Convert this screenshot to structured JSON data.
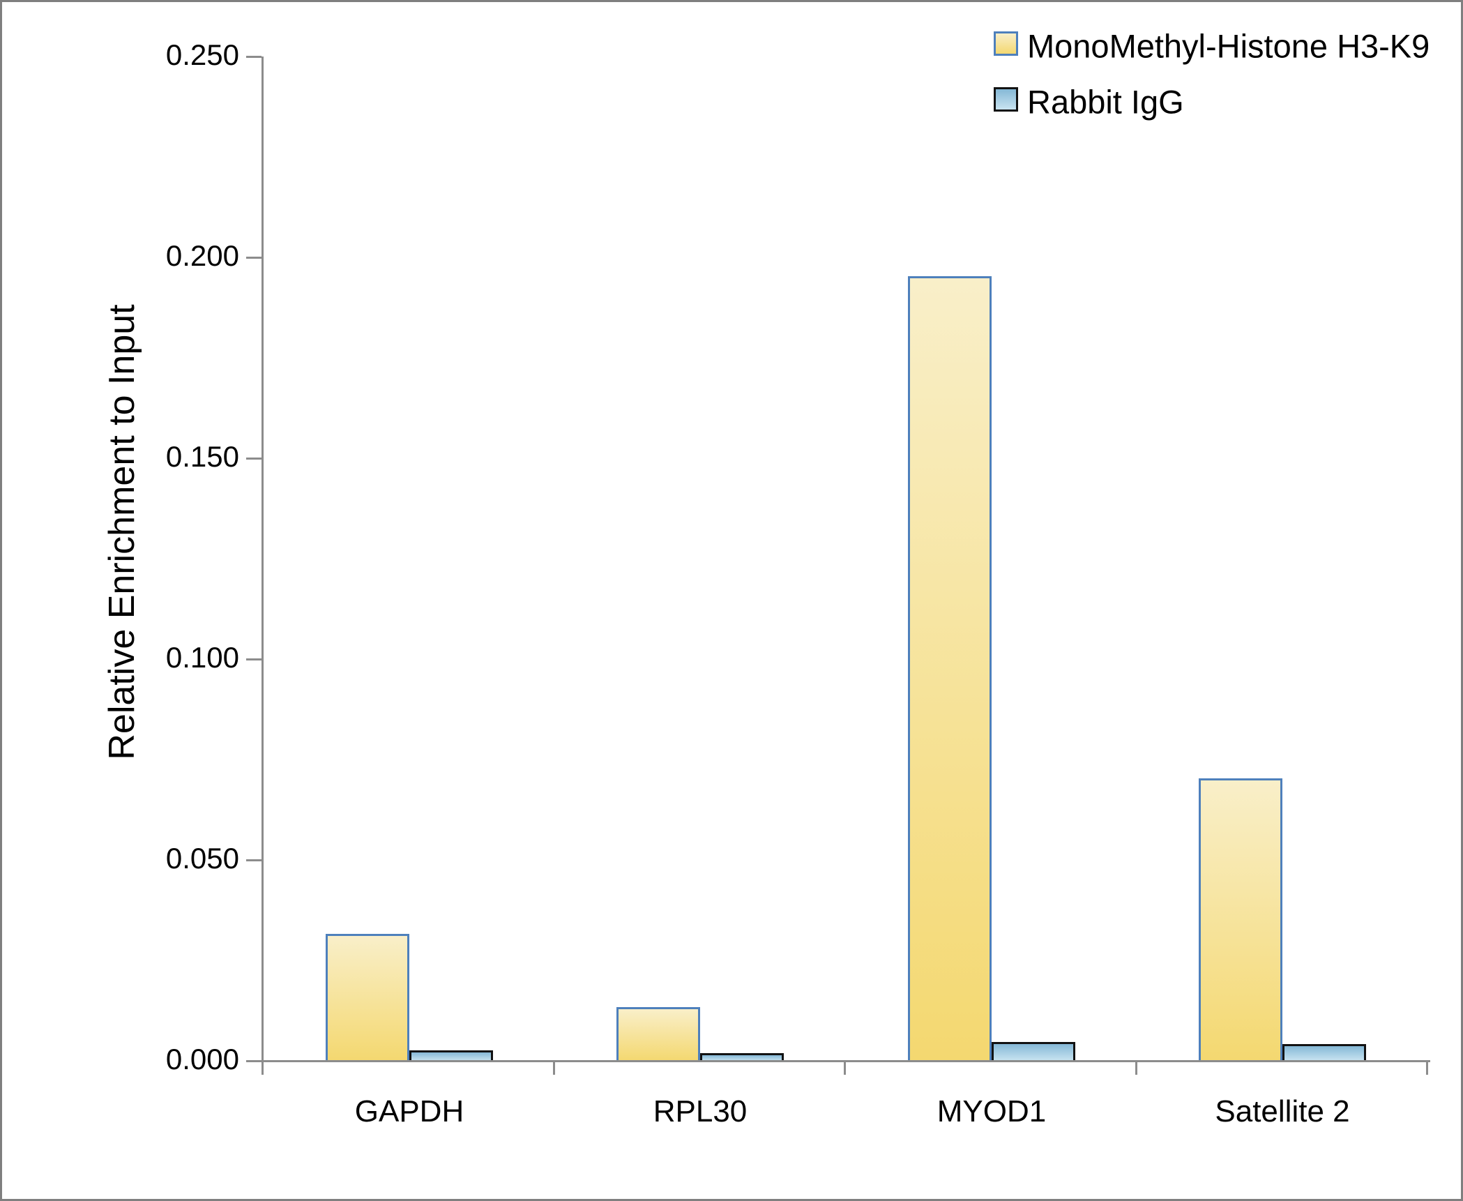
{
  "chart_data": {
    "type": "bar",
    "title": "",
    "xlabel": "",
    "ylabel": "Relative Enrichment to Input",
    "categories": [
      "GAPDH",
      "RPL30",
      "MYOD1",
      "Satellite 2"
    ],
    "series": [
      {
        "name": "MonoMethyl-Histone H3-K9",
        "values": [
          0.0316,
          0.0134,
          0.1953,
          0.0703
        ],
        "fill_top": "#F9EFC9",
        "fill_bottom": "#F4D870",
        "border_color": "#4E80BC"
      },
      {
        "name": "Rabbit IgG",
        "values": [
          0.0026,
          0.0019,
          0.0047,
          0.0042
        ],
        "fill_top": "#85B8D6",
        "fill_bottom": "#C9E4F1",
        "border_color": "#121212"
      }
    ],
    "ylim": [
      0,
      0.25
    ],
    "ytick_step": 0.05,
    "ytick_labels": [
      "0.000",
      "0.050",
      "0.100",
      "0.150",
      "0.200",
      "0.250"
    ],
    "grid": false,
    "legend_position": "top-right"
  },
  "colors": {
    "background": "#FFFFFF",
    "axis": "#8C8C8C",
    "frame_border": "#7F7F7F",
    "text": "#000000"
  }
}
